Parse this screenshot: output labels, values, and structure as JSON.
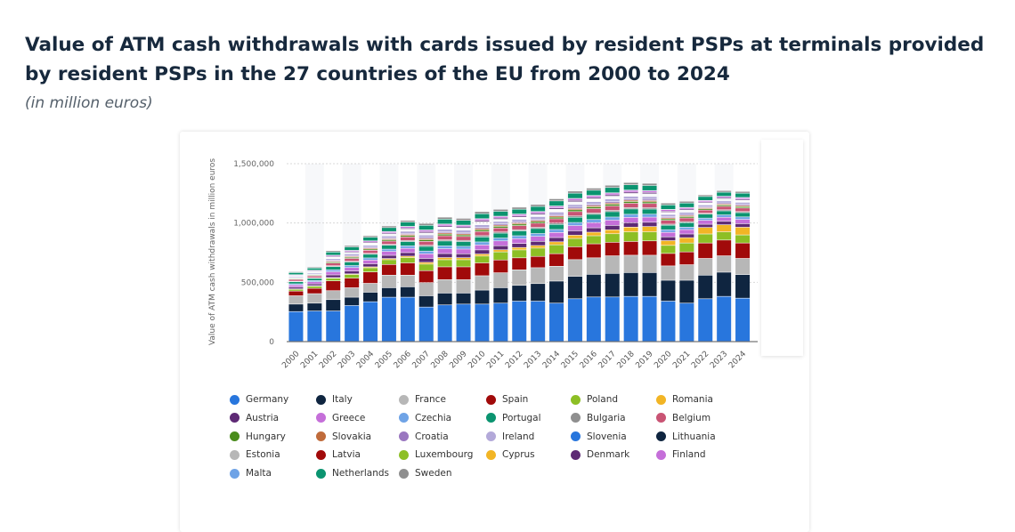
{
  "title": "Value of ATM cash withdrawals with cards issued by resident PSPs at terminals provided by resident PSPs in the 27 countries of the EU from 2000 to 2024",
  "subtitle": "(in million euros)",
  "chart_data": {
    "type": "bar",
    "stacked": true,
    "ylabel": "Value of ATM cash withdrawals in million euros",
    "xlabel": "",
    "ylim": [
      0,
      1500000
    ],
    "yticks": [
      "0",
      "500,000",
      "1,000,000",
      "1,500,000"
    ],
    "ytick_values": [
      0,
      500000,
      1000000,
      1500000
    ],
    "grid": true,
    "legend_position": "bottom",
    "categories": [
      "2000",
      "2001",
      "2002",
      "2003",
      "2004",
      "2005",
      "2006",
      "2007",
      "2008",
      "2009",
      "2010",
      "2011",
      "2012",
      "2013",
      "2014",
      "2015",
      "2016",
      "2017",
      "2018",
      "2019",
      "2020",
      "2021",
      "2022",
      "2023",
      "2024"
    ],
    "series": [
      {
        "name": "Germany",
        "color": "#2876dd",
        "values": [
          251000,
          256000,
          256000,
          302000,
          334000,
          372000,
          372000,
          289000,
          307000,
          314000,
          314000,
          322000,
          339000,
          339000,
          322000,
          359000,
          374000,
          374000,
          379000,
          379000,
          339000,
          322000,
          359000,
          379000,
          364000
        ]
      },
      {
        "name": "Italy",
        "color": "#0f2540",
        "values": [
          63000,
          66000,
          96000,
          70000,
          80000,
          80000,
          88000,
          95000,
          100000,
          93000,
          118000,
          130000,
          133000,
          148000,
          186000,
          189000,
          191000,
          199000,
          201000,
          201000,
          176000,
          193000,
          199000,
          204000,
          199000
        ]
      },
      {
        "name": "France",
        "color": "#b7b7b7",
        "values": [
          70000,
          80000,
          75000,
          80000,
          75000,
          106000,
          98000,
          111000,
          113000,
          113000,
          121000,
          126000,
          131000,
          134000,
          125000,
          141000,
          139000,
          148000,
          146000,
          146000,
          121000,
          131000,
          141000,
          138000,
          136000
        ]
      },
      {
        "name": "Spain",
        "color": "#a10a0a",
        "values": [
          40000,
          45000,
          83000,
          81000,
          96000,
          90000,
          103000,
          101000,
          108000,
          108000,
          108000,
          108000,
          101000,
          95000,
          106000,
          108000,
          118000,
          114000,
          116000,
          121000,
          105000,
          108000,
          130000,
          133000,
          130000
        ]
      },
      {
        "name": "Poland",
        "color": "#8dbf25",
        "values": [
          15000,
          18000,
          22000,
          30000,
          35000,
          40000,
          45000,
          55000,
          60000,
          60000,
          58000,
          68000,
          67000,
          70000,
          75000,
          70000,
          68000,
          72000,
          81000,
          76000,
          68000,
          75000,
          76000,
          69000,
          68000
        ]
      },
      {
        "name": "Romania",
        "color": "#f2b525",
        "values": [
          3000,
          4000,
          5000,
          6000,
          8000,
          10000,
          12000,
          15000,
          18000,
          17000,
          17000,
          18000,
          20000,
          22000,
          25000,
          28000,
          30000,
          33000,
          40000,
          45000,
          40000,
          45000,
          55000,
          60000,
          65000
        ]
      },
      {
        "name": "Austria",
        "color": "#5e2a75",
        "values": [
          15000,
          15000,
          23000,
          24000,
          26000,
          27000,
          30000,
          33000,
          34000,
          33000,
          35000,
          34000,
          34000,
          35000,
          36000,
          37000,
          37000,
          37000,
          37000,
          36000,
          32000,
          31000,
          27000,
          29000,
          30000
        ]
      },
      {
        "name": "Greece",
        "color": "#c56fd9",
        "values": [
          18000,
          18000,
          27000,
          29000,
          31000,
          33000,
          36000,
          39000,
          41000,
          40000,
          42000,
          41000,
          41000,
          42000,
          43000,
          44000,
          44000,
          45000,
          45000,
          43000,
          38000,
          37000,
          33000,
          34000,
          36000
        ]
      },
      {
        "name": "Czechia",
        "color": "#6fa3e6",
        "values": [
          10000,
          11000,
          16000,
          17000,
          18000,
          19000,
          21000,
          23000,
          24000,
          23000,
          25000,
          24000,
          24000,
          24000,
          25000,
          26000,
          26000,
          26000,
          26000,
          25000,
          22000,
          21000,
          19000,
          20000,
          21000
        ]
      },
      {
        "name": "Portugal",
        "color": "#0b9470",
        "values": [
          18000,
          18000,
          27000,
          29000,
          31000,
          33000,
          36000,
          39000,
          41000,
          40000,
          42000,
          41000,
          41000,
          42000,
          43000,
          44000,
          44000,
          45000,
          45000,
          43000,
          38000,
          37000,
          33000,
          34000,
          36000
        ]
      },
      {
        "name": "Bulgaria",
        "color": "#8f8f8f",
        "values": [
          4000,
          5000,
          7000,
          7000,
          8000,
          8000,
          9000,
          10000,
          10000,
          10000,
          11000,
          10000,
          10000,
          10000,
          11000,
          11000,
          11000,
          11000,
          11000,
          11000,
          9000,
          9000,
          8000,
          9000,
          9000
        ]
      },
      {
        "name": "Belgium",
        "color": "#c95474",
        "values": [
          15000,
          15000,
          23000,
          24000,
          26000,
          27000,
          30000,
          33000,
          34000,
          33000,
          35000,
          34000,
          34000,
          35000,
          36000,
          37000,
          37000,
          37000,
          37000,
          36000,
          32000,
          31000,
          27000,
          29000,
          30000
        ]
      },
      {
        "name": "Hungary",
        "color": "#4a8c1c",
        "values": [
          6000,
          6000,
          9000,
          10000,
          10000,
          11000,
          12000,
          13000,
          14000,
          13000,
          14000,
          14000,
          14000,
          14000,
          14000,
          15000,
          15000,
          15000,
          15000,
          14000,
          13000,
          12000,
          11000,
          11000,
          12000
        ]
      },
      {
        "name": "Slovakia",
        "color": "#c06b3b",
        "values": [
          4000,
          5000,
          7000,
          7000,
          8000,
          8000,
          9000,
          10000,
          10000,
          10000,
          11000,
          10000,
          10000,
          10000,
          11000,
          11000,
          11000,
          11000,
          11000,
          11000,
          9000,
          9000,
          8000,
          9000,
          9000
        ]
      },
      {
        "name": "Croatia",
        "color": "#9a77c0",
        "values": [
          4000,
          5000,
          7000,
          7000,
          8000,
          8000,
          9000,
          10000,
          10000,
          10000,
          11000,
          10000,
          10000,
          10000,
          11000,
          11000,
          11000,
          11000,
          11000,
          11000,
          9000,
          9000,
          8000,
          9000,
          9000
        ]
      },
      {
        "name": "Ireland",
        "color": "#b3a9d9",
        "values": [
          9000,
          9000,
          14000,
          14000,
          16000,
          16000,
          18000,
          20000,
          21000,
          20000,
          21000,
          21000,
          20000,
          21000,
          21000,
          22000,
          22000,
          22000,
          22000,
          22000,
          19000,
          18000,
          16000,
          17000,
          18000
        ]
      },
      {
        "name": "Slovenia",
        "color": "#2876dd",
        "values": [
          1000,
          2000,
          2000,
          2000,
          3000,
          3000,
          3000,
          3000,
          3000,
          3000,
          4000,
          3000,
          3000,
          3000,
          4000,
          4000,
          4000,
          4000,
          4000,
          4000,
          3000,
          3000,
          3000,
          3000,
          3000
        ]
      },
      {
        "name": "Lithuania",
        "color": "#0f2540",
        "values": [
          1000,
          2000,
          2000,
          2000,
          3000,
          3000,
          3000,
          3000,
          3000,
          3000,
          4000,
          3000,
          3000,
          3000,
          4000,
          4000,
          4000,
          4000,
          4000,
          4000,
          3000,
          3000,
          3000,
          3000,
          3000
        ]
      },
      {
        "name": "Estonia",
        "color": "#b7b7b7",
        "values": [
          1000,
          2000,
          2000,
          2000,
          3000,
          3000,
          3000,
          3000,
          3000,
          3000,
          4000,
          3000,
          3000,
          3000,
          4000,
          4000,
          4000,
          4000,
          4000,
          4000,
          3000,
          3000,
          3000,
          3000,
          3000
        ]
      },
      {
        "name": "Latvia",
        "color": "#a10a0a",
        "values": [
          1000,
          2000,
          2000,
          2000,
          3000,
          3000,
          3000,
          3000,
          3000,
          3000,
          4000,
          3000,
          3000,
          3000,
          4000,
          4000,
          4000,
          4000,
          4000,
          4000,
          3000,
          3000,
          3000,
          3000,
          3000
        ]
      },
      {
        "name": "Luxembourg",
        "color": "#8dbf25",
        "values": [
          1000,
          2000,
          2000,
          2000,
          3000,
          3000,
          3000,
          3000,
          3000,
          3000,
          4000,
          3000,
          3000,
          3000,
          4000,
          4000,
          4000,
          4000,
          4000,
          4000,
          3000,
          3000,
          3000,
          3000,
          3000
        ]
      },
      {
        "name": "Cyprus",
        "color": "#f2b525",
        "values": [
          1000,
          2000,
          2000,
          2000,
          3000,
          3000,
          3000,
          3000,
          3000,
          3000,
          4000,
          3000,
          3000,
          3000,
          4000,
          4000,
          4000,
          4000,
          4000,
          4000,
          3000,
          3000,
          3000,
          3000,
          3000
        ]
      },
      {
        "name": "Denmark",
        "color": "#5e2a75",
        "values": [
          4000,
          5000,
          7000,
          7000,
          8000,
          8000,
          9000,
          10000,
          10000,
          10000,
          11000,
          10000,
          10000,
          10000,
          11000,
          11000,
          11000,
          11000,
          11000,
          11000,
          9000,
          9000,
          8000,
          9000,
          9000
        ]
      },
      {
        "name": "Finland",
        "color": "#c56fd9",
        "values": [
          6000,
          6000,
          9000,
          10000,
          10000,
          11000,
          12000,
          13000,
          14000,
          13000,
          14000,
          14000,
          14000,
          14000,
          14000,
          15000,
          15000,
          15000,
          15000,
          14000,
          13000,
          12000,
          11000,
          11000,
          12000
        ]
      },
      {
        "name": "Malta",
        "color": "#6fa3e6",
        "values": [
          1000,
          1000,
          1000,
          1000,
          1000,
          1000,
          2000,
          2000,
          2000,
          2000,
          2000,
          2000,
          2000,
          2000,
          2000,
          2000,
          2000,
          2000,
          2000,
          2000,
          2000,
          2000,
          1000,
          1000,
          2000
        ]
      },
      {
        "name": "Netherlands",
        "color": "#0b9470",
        "values": [
          18000,
          18000,
          27000,
          29000,
          31000,
          33000,
          36000,
          39000,
          41000,
          40000,
          42000,
          41000,
          41000,
          42000,
          43000,
          44000,
          44000,
          45000,
          45000,
          43000,
          38000,
          37000,
          33000,
          34000,
          36000
        ]
      },
      {
        "name": "Sweden",
        "color": "#8f8f8f",
        "values": [
          7000,
          8000,
          11000,
          12000,
          13000,
          14000,
          15000,
          16000,
          17000,
          17000,
          18000,
          17000,
          17000,
          17000,
          18000,
          18000,
          18000,
          19000,
          19000,
          18000,
          16000,
          15000,
          14000,
          14000,
          15000
        ]
      }
    ]
  }
}
